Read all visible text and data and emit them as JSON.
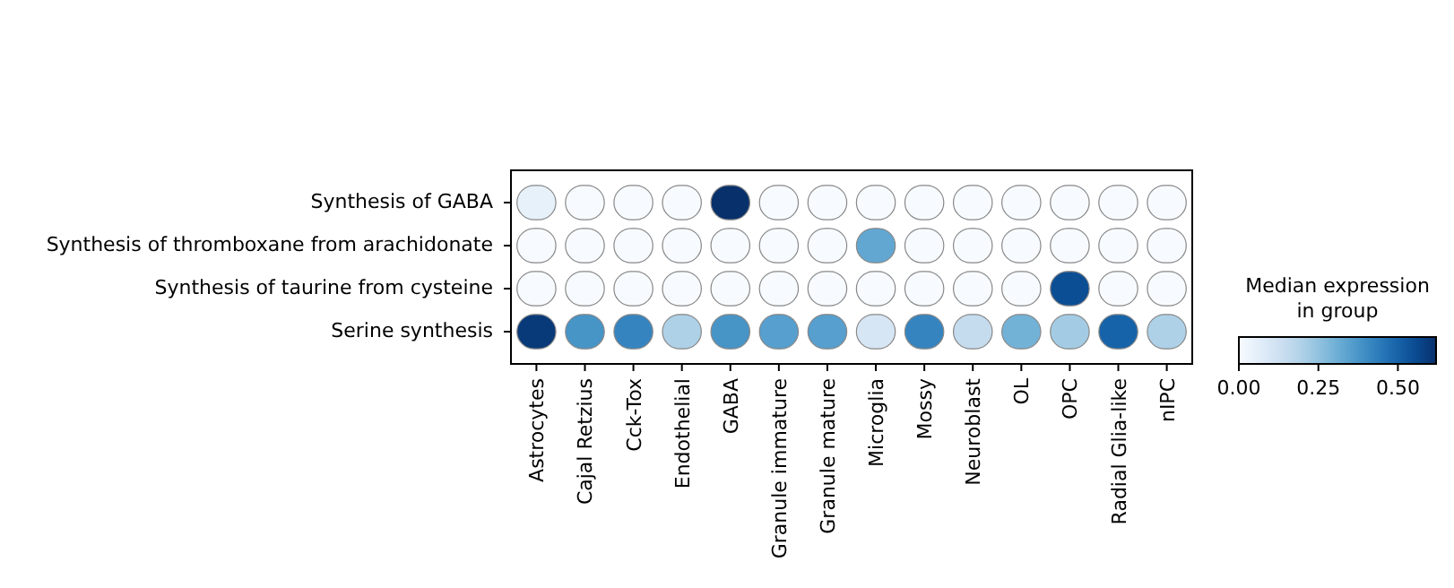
{
  "chart_data": {
    "type": "heatmap",
    "categories": [
      "Astrocytes",
      "Cajal Retzius",
      "Cck-Tox",
      "Endothelial",
      "GABA",
      "Granule immature",
      "Granule mature",
      "Microglia",
      "Mossy",
      "Neuroblast",
      "OL",
      "OPC",
      "Radial Glia-like",
      "nIPC"
    ],
    "y_categories": [
      "Synthesis of GABA",
      "Synthesis of thromboxane from arachidonate",
      "Synthesis of taurine from cysteine",
      "Serine synthesis"
    ],
    "cells": [
      [
        0.05,
        0,
        0,
        0,
        0.62,
        0,
        0,
        0,
        0,
        0,
        0,
        0,
        0,
        0
      ],
      [
        0,
        0,
        0,
        0,
        0,
        0,
        0,
        0.33,
        0,
        0,
        0,
        0,
        0,
        0
      ],
      [
        0,
        0,
        0,
        0,
        0,
        0,
        0,
        0,
        0,
        0,
        0,
        0.55,
        0,
        0
      ],
      [
        0.6,
        0.38,
        0.42,
        0.2,
        0.38,
        0.35,
        0.35,
        0.1,
        0.42,
        0.15,
        0.3,
        0.22,
        0.5,
        0.2
      ]
    ],
    "clabel": "Median expression\nin group",
    "clim": [
      0,
      0.62
    ],
    "cticks": [
      {
        "value": 0,
        "label": "0.00"
      },
      {
        "value": 0.25,
        "label": "0.25"
      },
      {
        "value": 0.5,
        "label": "0.50"
      }
    ]
  }
}
